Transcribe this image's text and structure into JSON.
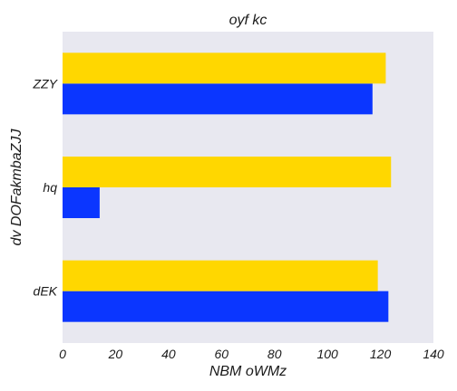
{
  "chart_data": {
    "type": "bar",
    "orientation": "horizontal",
    "title": "oyf kc",
    "xlabel": "NBM  oWMz",
    "ylabel": "dv DOFakmbaZJJ",
    "categories": [
      "dEK",
      "hq",
      "ZZY"
    ],
    "series": [
      {
        "values": [
          123,
          14,
          117
        ],
        "color": "#0b36ff"
      },
      {
        "values": [
          119,
          124,
          122
        ],
        "color": "#ffd700"
      }
    ],
    "xlim": [
      0,
      140
    ],
    "xticks": [
      0,
      20,
      40,
      60,
      80,
      100,
      120,
      140
    ],
    "grid": false,
    "plot_background": "#e8e8f0"
  }
}
